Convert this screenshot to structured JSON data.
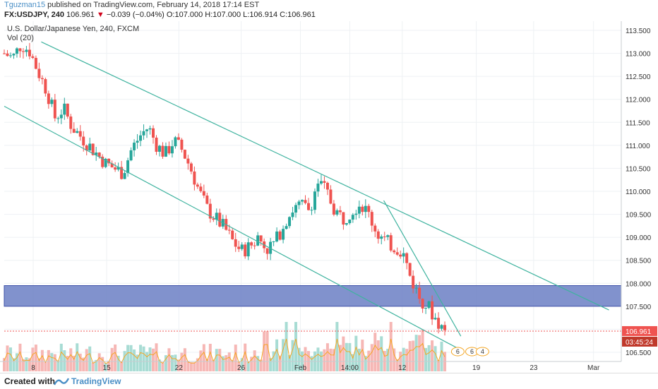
{
  "header": {
    "author": "Tguzman15",
    "published_text": " published on TradingView.com, February 14, 2018 17:14 EST",
    "symbol": "FX:USDJPY, 240",
    "last": "106.961",
    "change_arrow": "▼",
    "change": "−0.039 (−0.04%)",
    "ohlc": {
      "o_label": "O:",
      "o": "107.000",
      "h_label": "H:",
      "h": "107.000",
      "l_label": "L:",
      "l": "106.914",
      "c_label": "C:",
      "c": "106.961"
    }
  },
  "chart_data": {
    "type": "candlestick",
    "title": "U.S. Dollar/Japanese Yen, 240, FXCM",
    "indicator_label": "Vol (20)",
    "ylim": [
      106.3,
      113.7
    ],
    "y_ticks": [
      "113.500",
      "113.000",
      "112.500",
      "112.000",
      "111.500",
      "111.000",
      "110.500",
      "110.000",
      "109.500",
      "109.000",
      "108.500",
      "108.000",
      "107.500",
      "107.000",
      "106.500"
    ],
    "x_ticks": [
      "8",
      "15",
      "22",
      "26",
      "Feb",
      "14:00",
      "12",
      "19",
      "23",
      "Mar"
    ],
    "last_price_label": "106.961",
    "countdown_label": "03:45:24",
    "price_path": [
      113.0,
      112.9,
      113.2,
      113.05,
      112.6,
      112.2,
      111.6,
      111.8,
      111.4,
      111.2,
      111.0,
      110.8,
      110.6,
      110.5,
      110.4,
      110.9,
      111.2,
      111.4,
      111.0,
      110.8,
      111.1,
      110.9,
      110.5,
      110.0,
      109.6,
      109.4,
      109.2,
      108.9,
      108.7,
      108.8,
      109.0,
      108.75,
      108.9,
      109.3,
      109.6,
      109.7,
      109.6,
      110.2,
      110.0,
      109.6,
      109.4,
      109.6,
      109.75,
      109.5,
      109.1,
      108.9,
      108.8,
      108.7,
      108.1,
      107.7,
      107.5,
      107.2,
      106.961
    ],
    "volume_scale": [
      0.3,
      0.6
    ],
    "zone": {
      "top": 107.95,
      "bottom": 107.5,
      "color": "#6b7fc4"
    },
    "trendlines": [
      {
        "from": [
          113.25,
          0.06
        ],
        "to": [
          107.42,
          0.98
        ]
      },
      {
        "from": [
          111.85,
          0.0
        ],
        "to": [
          106.55,
          0.74
        ]
      },
      {
        "from": [
          109.8,
          0.615
        ],
        "to": [
          106.85,
          0.74
        ]
      }
    ],
    "colors": {
      "up": "#26a69a",
      "down": "#ef5350",
      "trend": "#3fb39f",
      "last_label": "#ef5350",
      "countdown_label": "#ef5350"
    },
    "markers": [
      "6",
      "6",
      "4"
    ]
  },
  "footer": {
    "created": "Created with",
    "brand": "TradingView"
  }
}
